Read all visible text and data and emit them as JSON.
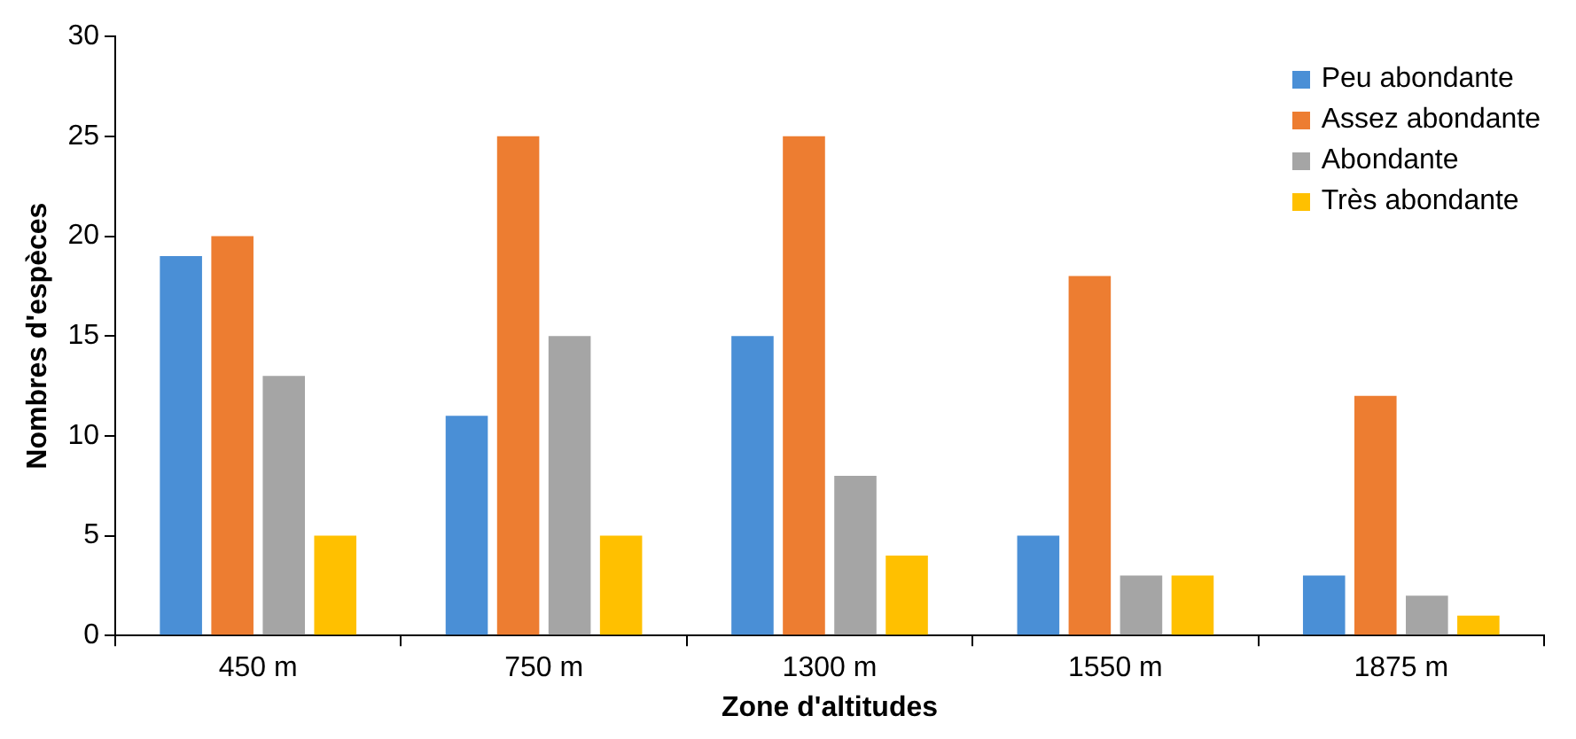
{
  "chart_data": {
    "type": "bar",
    "xlabel": "Zone d'altitudes",
    "ylabel": "Nombres d'espèces",
    "categories": [
      "450 m",
      "750 m",
      "1300 m",
      "1550 m",
      "1875 m"
    ],
    "series": [
      {
        "name": "Peu abondante",
        "color": "#4a8fd6",
        "values": [
          19,
          11,
          15,
          5,
          3
        ]
      },
      {
        "name": "Assez abondante",
        "color": "#ed7d31",
        "values": [
          20,
          25,
          25,
          18,
          12
        ]
      },
      {
        "name": "Abondante",
        "color": "#a5a5a5",
        "values": [
          13,
          15,
          8,
          3,
          2
        ]
      },
      {
        "name": "Très abondante",
        "color": "#ffc000",
        "values": [
          5,
          5,
          4,
          3,
          1
        ]
      }
    ],
    "ylim": [
      0,
      30
    ],
    "yticks": [
      0,
      5,
      10,
      15,
      20,
      25,
      30
    ],
    "grid": false,
    "legend": "top right"
  }
}
